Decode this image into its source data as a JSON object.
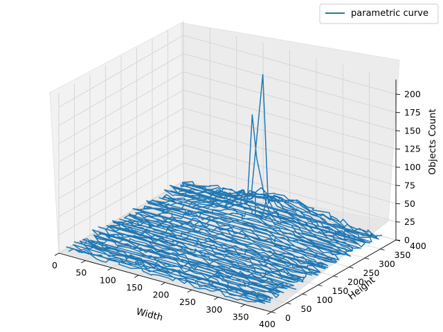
{
  "chart_data": {
    "type": "line",
    "projection": "3d",
    "xlabel": "Width",
    "ylabel": "Height",
    "zlabel": "Objects Count",
    "xlim": [
      0,
      400
    ],
    "ylim": [
      0,
      400
    ],
    "zlim": [
      0,
      220
    ],
    "xticks": [
      0,
      50,
      100,
      150,
      200,
      250,
      300,
      350,
      400
    ],
    "yticks": [
      0,
      50,
      100,
      150,
      200,
      250,
      300,
      350,
      400
    ],
    "zticks": [
      0,
      25,
      50,
      75,
      100,
      125,
      150,
      175,
      200
    ],
    "grid": true,
    "legend_position": "top-right",
    "series": [
      {
        "name": "parametric curve",
        "color": "#1f77b4"
      }
    ],
    "peak": {
      "x": 200,
      "y": 300,
      "z": 205
    }
  }
}
